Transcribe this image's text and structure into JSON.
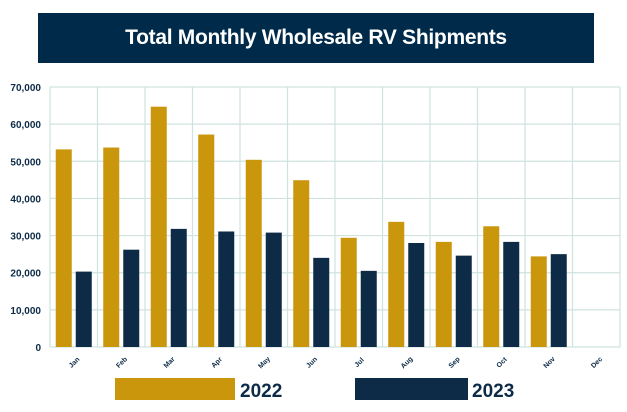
{
  "chart_data": {
    "type": "bar",
    "title": "Total Monthly Wholesale RV Shipments",
    "xlabel": "",
    "ylabel": "",
    "categories": [
      "Jan",
      "Feb",
      "Mar",
      "Apr",
      "May",
      "Jun",
      "Jul",
      "Aug",
      "Sep",
      "Oct",
      "Nov",
      "Dec"
    ],
    "series": [
      {
        "name": "2022",
        "color": "#c9960c",
        "values": [
          53200,
          53700,
          64700,
          57200,
          50400,
          44900,
          29400,
          33700,
          28300,
          32500,
          24400,
          null
        ]
      },
      {
        "name": "2023",
        "color": "#0d2b47",
        "values": [
          20300,
          26200,
          31800,
          31100,
          30800,
          24000,
          20500,
          28000,
          24600,
          28300,
          25000,
          null
        ]
      }
    ],
    "ylim": [
      0,
      70000
    ],
    "yticks": [
      "0",
      "10,000",
      "20,000",
      "30,000",
      "40,000",
      "50,000",
      "60,000",
      "70,000"
    ],
    "grid": true,
    "legend_position": "bottom"
  }
}
